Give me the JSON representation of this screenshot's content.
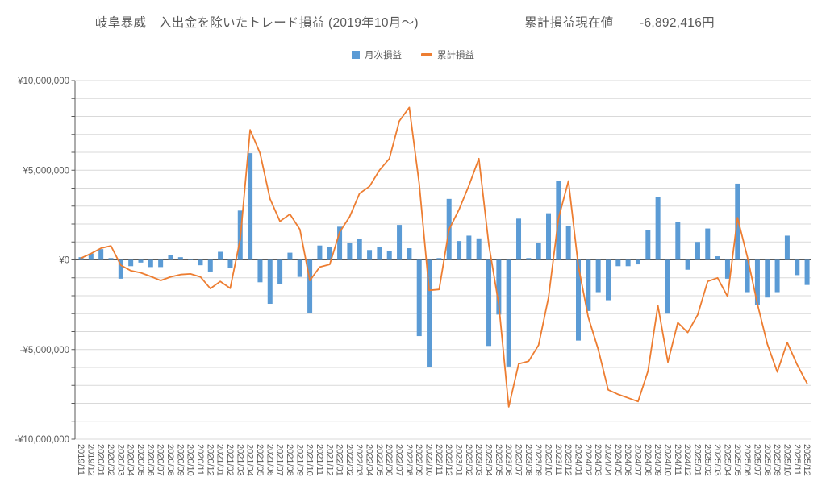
{
  "title": {
    "main": "岐阜暴威　入出金を除いたトレード損益 (2019年10月～)",
    "current_label": "累計損益現在値",
    "current_value": "-6,892,416円"
  },
  "legend": {
    "monthly_label": "月次損益",
    "cumulative_label": "累計損益"
  },
  "colors": {
    "bar": "#5B9BD5",
    "line": "#ED7D31",
    "grid": "#D9D9D9",
    "axis": "#595959",
    "text": "#595959",
    "background": "#FFFFFF"
  },
  "chart_data": {
    "type": "bar",
    "subtype": "bar+line combo",
    "title": "岐阜暴威　入出金を除いたトレード損益 (2019年10月～)",
    "annotation": "累計損益現在値 -6,892,416円",
    "legend_position": "top",
    "grid": true,
    "unit": "million JPY",
    "categories": [
      "2019/11",
      "2019/12",
      "2020/01",
      "2020/02",
      "2020/03",
      "2020/04",
      "2020/05",
      "2020/06",
      "2020/07",
      "2020/08",
      "2020/09",
      "2020/10",
      "2020/11",
      "2020/12",
      "2021/01",
      "2021/02",
      "2021/03",
      "2021/04",
      "2021/05",
      "2021/06",
      "2021/07",
      "2021/08",
      "2021/09",
      "2021/10",
      "2021/11",
      "2021/12",
      "2022/01",
      "2022/02",
      "2022/03",
      "2022/04",
      "2022/05",
      "2022/06",
      "2022/07",
      "2022/08",
      "2022/09",
      "2022/10",
      "2022/11",
      "2022/12",
      "2023/01",
      "2023/02",
      "2023/03",
      "2023/04",
      "2023/05",
      "2023/06",
      "2023/07",
      "2023/08",
      "2023/09",
      "2023/10",
      "2023/11",
      "2023/12",
      "2024/01",
      "2024/02",
      "2024/03",
      "2024/04",
      "2024/05",
      "2024/06",
      "2024/07",
      "2024/08",
      "2024/09",
      "2024/10",
      "2024/11",
      "2024/12",
      "2025/01",
      "2025/02",
      "2025/03",
      "2025/04",
      "2025/05",
      "2025/06",
      "2025/07",
      "2025/08",
      "2025/09",
      "2025/10",
      "2025/11",
      "2025/12"
    ],
    "series": [
      {
        "name": "月次損益",
        "type": "bar",
        "color": "#5B9BD5",
        "values_million_jpy": [
          0.15,
          0.35,
          0.6,
          0.1,
          -1.05,
          -0.35,
          -0.15,
          -0.4,
          -0.4,
          0.25,
          0.15,
          0.05,
          -0.3,
          -0.65,
          0.45,
          -0.45,
          2.75,
          5.95,
          -1.25,
          -2.45,
          -1.35,
          0.4,
          -0.95,
          -2.95,
          0.8,
          0.7,
          1.85,
          0.95,
          1.15,
          0.55,
          0.7,
          0.5,
          1.95,
          0.65,
          -4.25,
          -6.0,
          0.1,
          3.4,
          1.05,
          1.35,
          1.2,
          -4.8,
          -3.05,
          -5.95,
          2.3,
          0.1,
          0.95,
          2.6,
          4.4,
          1.9,
          -4.5,
          -2.85,
          -1.8,
          -2.25,
          -0.35,
          -0.35,
          -0.25,
          1.65,
          3.5,
          -3.0,
          2.1,
          -0.55,
          1.0,
          1.75,
          0.2,
          -1.05,
          4.25,
          -1.8,
          -2.5,
          -2.1,
          -1.8,
          1.35,
          -0.85,
          -1.4
        ]
      },
      {
        "name": "累計損益",
        "type": "line",
        "color": "#ED7D31",
        "values_million_jpy": [
          0.1,
          0.35,
          0.65,
          0.78,
          -0.3,
          -0.6,
          -0.72,
          -0.92,
          -1.15,
          -0.95,
          -0.82,
          -0.78,
          -0.95,
          -1.6,
          -1.2,
          -1.58,
          1.15,
          7.25,
          5.95,
          3.4,
          2.15,
          2.55,
          1.7,
          -1.15,
          -0.4,
          -0.25,
          1.55,
          2.4,
          3.7,
          4.1,
          5.0,
          5.65,
          7.75,
          8.5,
          4.25,
          -1.7,
          -1.65,
          1.7,
          2.8,
          4.15,
          5.65,
          0.85,
          -2.5,
          -8.2,
          -5.8,
          -5.65,
          -4.75,
          -2.1,
          2.3,
          4.4,
          -0.35,
          -3.2,
          -5.0,
          -7.25,
          -7.5,
          -7.7,
          -7.9,
          -6.2,
          -2.55,
          -5.7,
          -3.5,
          -4.05,
          -3.05,
          -1.2,
          -1.0,
          -2.05,
          2.35,
          0.15,
          -2.45,
          -4.7,
          -6.25,
          -4.6,
          -5.85,
          -6.89
        ]
      }
    ],
    "y_axis": {
      "min_million_jpy": -10,
      "max_million_jpy": 10,
      "minor_gridline_interval_million_jpy": 1,
      "label_interval_million_jpy": 5,
      "labels": [
        "¥10,000,000",
        "¥5,000,000",
        "¥0",
        "-¥5,000,000",
        "-¥10,000,000"
      ],
      "label_values_million_jpy": [
        10,
        5,
        0,
        -5,
        -10
      ]
    }
  }
}
